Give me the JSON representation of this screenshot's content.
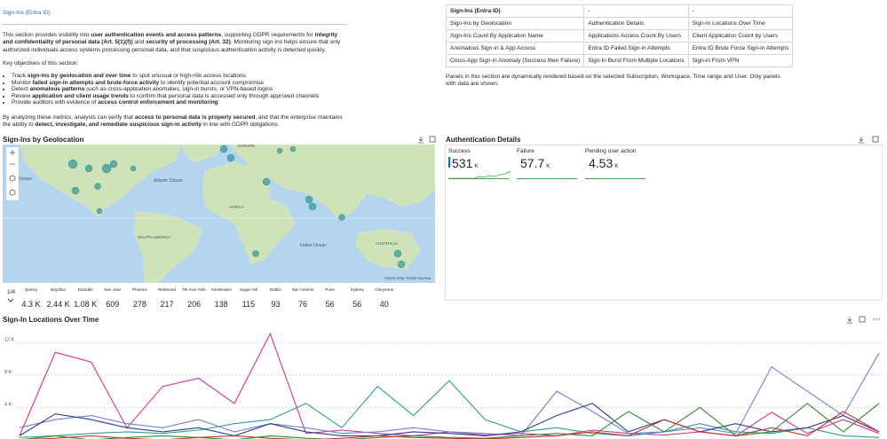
{
  "header": {
    "title": "Sign-Ins (Entra ID)"
  },
  "intro": {
    "paragraph": [
      {
        "text": "This section provides visibility into "
      },
      {
        "text": "user authentication events and access patterns",
        "bold": true
      },
      {
        "text": ", supporting GDPR requirements for "
      },
      {
        "text": "integrity and confidentiality of personal data (Art. 5(1)(f))",
        "bold": true
      },
      {
        "text": " and "
      },
      {
        "text": "security of processing (Art. 32)",
        "bold": true
      },
      {
        "text": ". Monitoring sign-ins helps ensure that only authorized individuals access systems processing personal data, and that suspicious authentication activity is detected quickly."
      }
    ],
    "objectives_heading": "Key objectives of this section:",
    "objectives": [
      [
        {
          "text": "Track "
        },
        {
          "text": "sign-ins by geolocation and over time",
          "bold": true
        },
        {
          "text": " to spot unusual or high-risk access locations"
        }
      ],
      [
        {
          "text": "Monitor "
        },
        {
          "text": "failed sign-in attempts and brute-force activity",
          "bold": true
        },
        {
          "text": " to identify potential account compromise"
        }
      ],
      [
        {
          "text": "Detect "
        },
        {
          "text": "anomalous patterns",
          "bold": true
        },
        {
          "text": " such as cross-application anomalies, sign-in bursts, or VPN-based logins"
        }
      ],
      [
        {
          "text": "Review "
        },
        {
          "text": "application and client usage trends",
          "bold": true
        },
        {
          "text": " to confirm that personal data is accessed only through approved channels"
        }
      ],
      [
        {
          "text": "Provide auditors with evidence of "
        },
        {
          "text": "access control enforcement and monitoring",
          "bold": true
        }
      ]
    ],
    "closing": [
      {
        "text": "By analyzing these metrics, analysts can verify that "
      },
      {
        "text": "access to personal data is properly secured",
        "bold": true
      },
      {
        "text": ", and that the enterprise maintains the ability to "
      },
      {
        "text": "detect, investigate, and remediate suspicious sign-in activity",
        "bold": true
      },
      {
        "text": " in line with GDPR obligations."
      }
    ]
  },
  "nav_table": {
    "rows": [
      [
        "Sign-Ins (Entra ID)",
        "-",
        "-"
      ],
      [
        "Sign-Ins by Geolocation",
        "Authentication Details",
        "Sign-In Locations Over Time"
      ],
      [
        "Sign-Ins Count By Application Name",
        "Applications Access Count By Users",
        "Client Application Count by Users"
      ],
      [
        "Anomalous Sign-in & App Access",
        "Entra ID Failed Sign-in Attempts",
        "Entra ID Brute Force Sign-in Attempts"
      ],
      [
        "Cross-App Sign-in Anomaly (Success then Failure)",
        "Sign-In Burst From Multiple Locations",
        "Sign-in From VPN"
      ]
    ],
    "note": "Panels in this section are dynamically rendered based on the selected Subscription, Workspace, Time range and User. Only panels with data are shown."
  },
  "geo_panel": {
    "title": "Sign-Ins by Geolocation",
    "map_labels": {
      "ocean": "Ocean",
      "atlantic": "Atlantic Ocean",
      "europe": "EUROPE",
      "south_america": "SOUTH AMERICA",
      "africa": "AFRICA",
      "indian": "Indian Ocean",
      "australia": "AUSTRALIA",
      "attribution": "©2025 OSM, ©2025 TomTom"
    },
    "pager": "1/4",
    "tiles": [
      {
        "name": "Quincy",
        "value": "4.3 K"
      },
      {
        "name": "Boydton",
        "value": "2.44 K"
      },
      {
        "name": "Dunedin",
        "value": "1.08 K"
      },
      {
        "name": "San Jose",
        "value": "609"
      },
      {
        "name": "Phoenix",
        "value": "278"
      },
      {
        "name": "Redmond",
        "value": "217"
      },
      {
        "name": "Tel Aviv-Yafo",
        "value": "206"
      },
      {
        "name": "Amsterdam",
        "value": "138"
      },
      {
        "name": "Sugar Hill",
        "value": "115"
      },
      {
        "name": "Dublin",
        "value": "93"
      },
      {
        "name": "San Antonio",
        "value": "76"
      },
      {
        "name": "Pune",
        "value": "56"
      },
      {
        "name": "Sydney",
        "value": "56"
      },
      {
        "name": "Cheyenne",
        "value": "40"
      }
    ]
  },
  "auth_panel": {
    "title": "Authentication Details",
    "tiles": [
      {
        "label": "Success",
        "value": "531",
        "unit": "K"
      },
      {
        "label": "Failure",
        "value": "57.7",
        "unit": "K"
      },
      {
        "label": "Pending user action",
        "value": "4.53",
        "unit": "K"
      }
    ]
  },
  "line_chart": {
    "type": "line",
    "title": "Sign-In Locations Over Time",
    "ylim": [
      0,
      14000
    ],
    "yticks": [
      {
        "value": 4000,
        "label": "4 K"
      },
      {
        "value": 8000,
        "label": "8 K"
      },
      {
        "value": 12000,
        "label": "12 K"
      }
    ],
    "grid": true,
    "series": [
      {
        "color": "#d6338f",
        "values": [
          500,
          10800,
          9600,
          1500,
          6600,
          7600,
          4500,
          13100,
          800,
          1200,
          800,
          500,
          1000,
          600,
          800,
          500,
          1200,
          800,
          600,
          1000,
          500,
          3400,
          800,
          2500,
          800
        ]
      },
      {
        "color": "#2f9e8f",
        "values": [
          300,
          500,
          800,
          1000,
          800,
          1200,
          2000,
          2500,
          4500,
          1500,
          6600,
          3000,
          7300,
          2500,
          1000,
          1500,
          800,
          500,
          1000,
          2000,
          1000,
          800,
          1500,
          500,
          300
        ]
      },
      {
        "color": "#6f80d8",
        "values": [
          1500,
          2500,
          3000,
          2000,
          1500,
          2500,
          1000,
          2000,
          1500,
          800,
          1000,
          1500,
          1000,
          800,
          500,
          6000,
          3500,
          800,
          1000,
          1500,
          800,
          9000,
          6000,
          3000,
          10700
        ]
      },
      {
        "color": "#2b3f8f",
        "values": [
          500,
          3200,
          2500,
          1500,
          1000,
          1500,
          500,
          2000,
          1000,
          500,
          500,
          1000,
          800,
          500,
          1000,
          3000,
          4500,
          1000,
          2500,
          1000,
          2000,
          1000,
          1500,
          3000,
          1000
        ]
      },
      {
        "color": "#2e8b2e",
        "values": [
          0,
          500,
          0,
          300,
          500,
          300,
          0,
          500,
          200,
          0,
          300,
          500,
          300,
          200,
          500,
          800,
          500,
          3500,
          1000,
          4000,
          500,
          1000,
          4500,
          1000,
          4500
        ]
      },
      {
        "color": "#c8322d",
        "values": [
          0,
          200,
          500,
          200,
          0,
          300,
          500,
          200,
          0,
          200,
          500,
          300,
          200,
          100,
          300,
          500,
          1000,
          500,
          2500,
          1000,
          500,
          1500,
          500,
          3500,
          1000
        ]
      }
    ]
  }
}
